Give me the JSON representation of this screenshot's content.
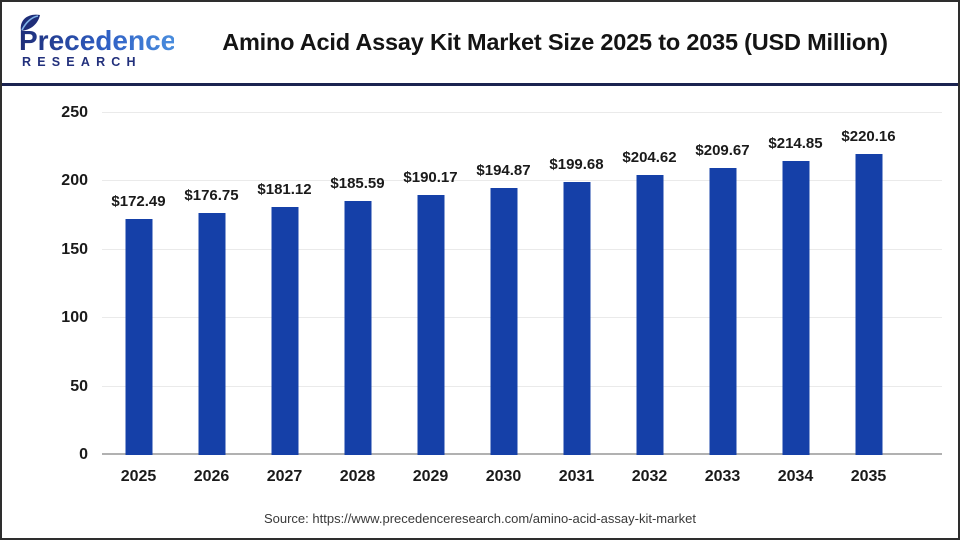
{
  "header": {
    "brand": {
      "name": "Precedence",
      "sub": "RESEARCH"
    },
    "title": "Amino Acid Assay Kit Market Size 2025 to 2035 (USD Million)"
  },
  "chart_data": {
    "type": "bar",
    "title": "Amino Acid Assay Kit Market Size 2025 to 2035 (USD Million)",
    "categories": [
      "2025",
      "2026",
      "2027",
      "2028",
      "2029",
      "2030",
      "2031",
      "2032",
      "2033",
      "2034",
      "2035"
    ],
    "values": [
      172.49,
      176.75,
      181.12,
      185.59,
      190.17,
      194.87,
      199.68,
      204.62,
      209.67,
      214.85,
      220.16
    ],
    "value_labels": [
      "$172.49",
      "$176.75",
      "$181.12",
      "$185.59",
      "$190.17",
      "$194.87",
      "$199.68",
      "$204.62",
      "$209.67",
      "$214.85",
      "$220.16"
    ],
    "xlabel": "",
    "ylabel": "",
    "ylim": [
      0,
      250
    ],
    "yticks": [
      0,
      50,
      100,
      150,
      200,
      250
    ],
    "grid": true,
    "legend": false,
    "bar_color": "#1540a8"
  },
  "footer": {
    "source": "Source: https://www.precedenceresearch.com/amino-acid-assay-kit-market"
  },
  "colors": {
    "bar": "#1540a8",
    "divider": "#1b2350",
    "grid": "#eaeaea",
    "baseline": "#b1b1b1",
    "brand_dark": "#1e2d78",
    "brand_light": "#4a8ede",
    "title_text": "#141414"
  }
}
